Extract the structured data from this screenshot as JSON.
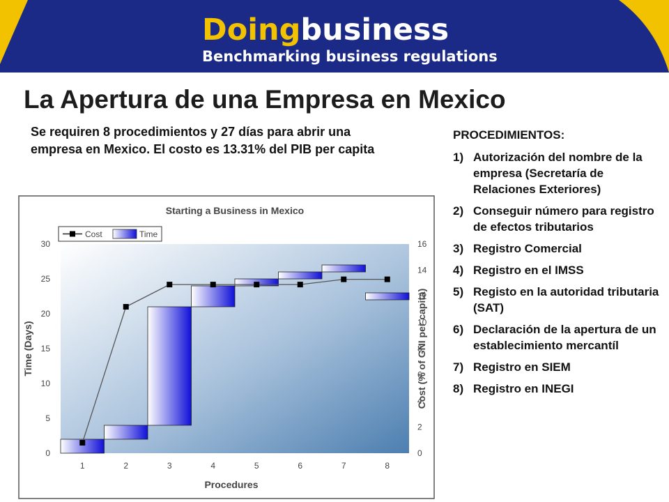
{
  "banner": {
    "brand_part1": "Doing",
    "brand_part2": "business",
    "tagline": "Benchmarking business regulations",
    "colors": {
      "background": "#1b2a86",
      "accent": "#f2c200",
      "text": "#ffffff"
    }
  },
  "slide": {
    "title": "La Apertura de una Empresa en Mexico",
    "summary": "Se requiren 8 procedimientos y 27 días para abrir una empresa en Mexico.  El costo es 13.31% del PIB per capita"
  },
  "procedures_panel": {
    "heading": "PROCEDIMIENTOS:",
    "items": [
      {
        "num": "1)",
        "text": "Autorización del nombre de la empresa (Secretaría de Relaciones Exteriores)"
      },
      {
        "num": "2)",
        "text": "Conseguir número para registro de efectos tributarios"
      },
      {
        "num": "3)",
        "text": "Registro Comercial"
      },
      {
        "num": "4)",
        "text": "Registro en el IMSS"
      },
      {
        "num": "5)",
        "text": "Registo en la autoridad tributaria (SAT)"
      },
      {
        "num": "6)",
        "text": "Declaración de la apertura de un establecimiento mercantíl"
      },
      {
        "num": "7)",
        "text": "Registro en SIEM"
      },
      {
        "num": "8)",
        "text": "Registro en INEGI"
      }
    ]
  },
  "chart_data": {
    "type": "bar",
    "title": "Starting a Business in Mexico",
    "xlabel": "Procedures",
    "ylabel": "Time (Days)",
    "y2label": "Cost (% of GNI per capita)",
    "categories": [
      "1",
      "2",
      "3",
      "4",
      "5",
      "6",
      "7",
      "8"
    ],
    "ylim": [
      0,
      30
    ],
    "yticks": [
      "0",
      "5",
      "10",
      "15",
      "20",
      "25",
      "30"
    ],
    "y2lim": [
      0,
      16
    ],
    "y2ticks": [
      "0",
      "2",
      "4",
      "6",
      "8",
      "10",
      "12",
      "14",
      "16"
    ],
    "legend": {
      "position": "top-left",
      "entries": [
        "Cost",
        "Time"
      ]
    },
    "series": [
      {
        "name": "Time",
        "kind": "waterfall-bar",
        "axis": "left",
        "start": [
          0,
          2,
          4,
          21,
          24,
          25,
          26,
          23
        ],
        "end": [
          2,
          4,
          21,
          24,
          25,
          26,
          27,
          22
        ]
      },
      {
        "name": "Cost",
        "kind": "line",
        "axis": "right",
        "values": [
          0.8,
          11.2,
          12.9,
          12.9,
          12.9,
          12.9,
          13.3,
          13.3
        ]
      }
    ],
    "colors": {
      "bar_dark": "#1010d8",
      "bar_light": "#ffffff",
      "line": "#555555",
      "marker": "#000000",
      "plot_bg_top": "#ffffff",
      "plot_bg_bottom": "#4d7fb0"
    }
  }
}
